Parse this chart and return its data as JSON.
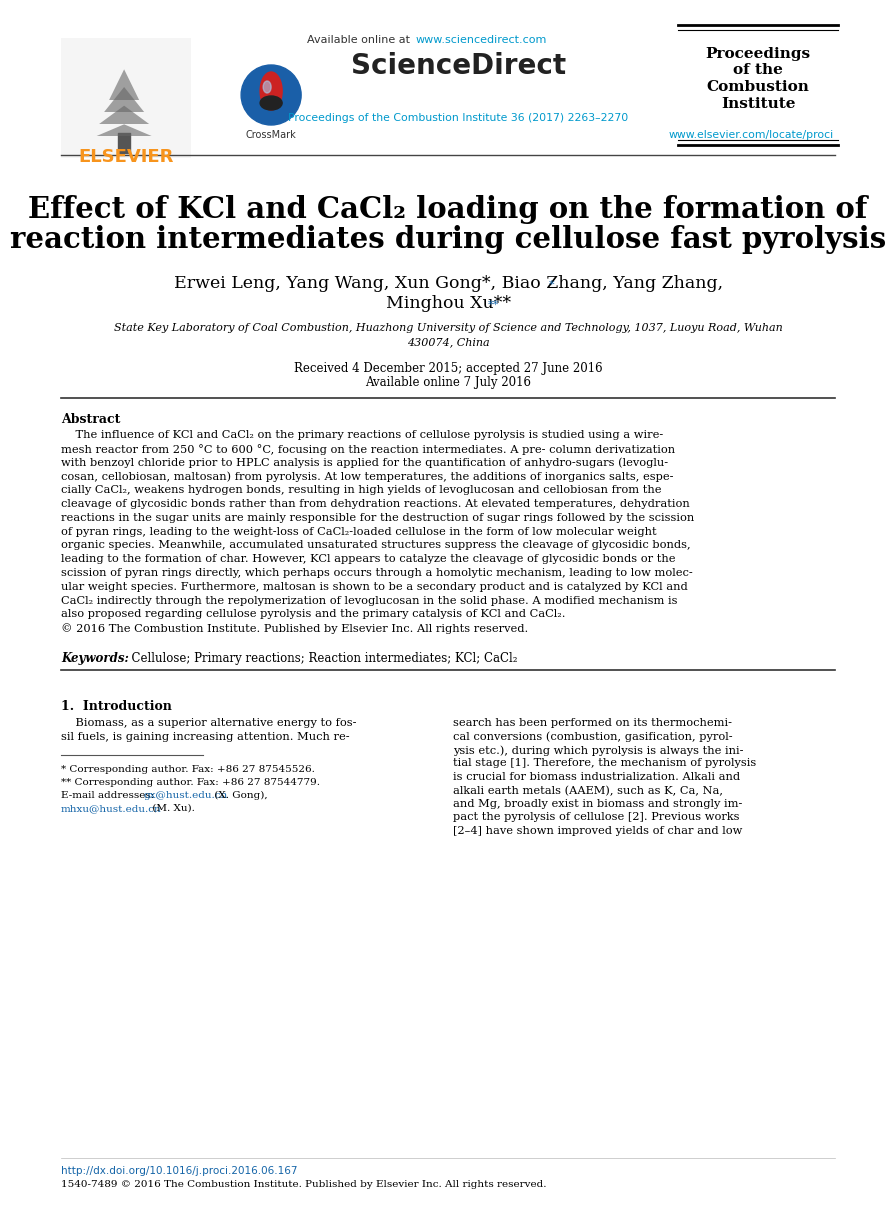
{
  "bg_color": "#ffffff",
  "color_blue": "#1565a8",
  "color_cyan": "#0099cc",
  "color_orange": "#f7941d",
  "color_black": "#000000",
  "header_available": "Available online at ",
  "header_url": "www.sciencedirect.com",
  "header_sciencedirect": "ScienceDirect",
  "header_proc1": "Proceedings",
  "header_proc2": "of the",
  "header_proc3": "Combustion",
  "header_proc4": "Institute",
  "header_journal": "Proceedings of the Combustion Institute 36 (2017) 2263–2270",
  "header_elsevier_url": "www.elsevier.com/locate/proci",
  "header_elsevier": "ELSEVIER",
  "header_crossmark": "CrossMark",
  "title1": "Effect of KCl and CaCl₂ loading on the formation of",
  "title2": "reaction intermediates during cellulose fast pyrolysis",
  "authors1": "Erwei Leng, Yang Wang, Xun Gong",
  "authors_star1": "*",
  "authors1b": ", Biao Zhang, Yang Zhang,",
  "authors2": "Minghou Xu",
  "authors_star2": "**",
  "affil1": "State Key Laboratory of Coal Combustion, Huazhong University of Science and Technology, 1037, Luoyu Road, Wuhan",
  "affil2": "430074, China",
  "received": "Received 4 December 2015; accepted 27 June 2016",
  "available_online": "Available online 7 July 2016",
  "abstract_head": "Abstract",
  "abstract_para": [
    "    The influence of KCl and CaCl₂ on the primary reactions of cellulose pyrolysis is studied using a wire-",
    "mesh reactor from 250 °C to 600 °C, focusing on the reaction intermediates. A pre- column derivatization",
    "with benzoyl chloride prior to HPLC analysis is applied for the quantification of anhydro-sugars (levoglu-",
    "cosan, cellobiosan, maltosan) from pyrolysis. At low temperatures, the additions of inorganics salts, espe-",
    "cially CaCl₂, weakens hydrogen bonds, resulting in high yields of levoglucosan and cellobiosan from the",
    "cleavage of glycosidic bonds rather than from dehydration reactions. At elevated temperatures, dehydration",
    "reactions in the sugar units are mainly responsible for the destruction of sugar rings followed by the scission",
    "of pyran rings, leading to the weight-loss of CaCl₂-loaded cellulose in the form of low molecular weight",
    "organic species. Meanwhile, accumulated unsaturated structures suppress the cleavage of glycosidic bonds,",
    "leading to the formation of char. However, KCl appears to catalyze the cleavage of glycosidic bonds or the",
    "scission of pyran rings directly, which perhaps occurs through a homolytic mechanism, leading to low molec-",
    "ular weight species. Furthermore, maltosan is shown to be a secondary product and is catalyzed by KCl and",
    "CaCl₂ indirectly through the repolymerization of levoglucosan in the solid phase. A modified mechanism is",
    "also proposed regarding cellulose pyrolysis and the primary catalysis of KCl and CaCl₂.",
    "© 2016 The Combustion Institute. Published by Elsevier Inc. All rights reserved."
  ],
  "keywords_label": "Keywords:",
  "keywords_text": "  Cellulose; Primary reactions; Reaction intermediates; KCl; CaCl₂",
  "intro_head": "1.  Introduction",
  "intro_col1": [
    "    Biomass, as a superior alternative energy to fos-",
    "sil fuels, is gaining increasing attention. Much re-"
  ],
  "intro_col2": [
    "search has been performed on its thermochemi-",
    "cal conversions (combustion, gasification, pyrol-",
    "ysis etc.), during which pyrolysis is always the ini-",
    "tial stage [1]. Therefore, the mechanism of pyrolysis",
    "is crucial for biomass industrialization. Alkali and",
    "alkali earth metals (AAEM), such as K, Ca, Na,",
    "and Mg, broadly exist in biomass and strongly im-",
    "pact the pyrolysis of cellulose [2]. Previous works",
    "[2–4] have shown improved yields of char and low"
  ],
  "fn_line": "* Corresponding author. Fax: +86 27 87545526.",
  "fn_line2": "** Corresponding author. Fax: +86 27 87544779.",
  "fn_email_pre": "E-mail addresses: ",
  "fn_email_link1": "gx@hust.edu.cn",
  "fn_email_mid": " (X. Gong),",
  "fn_email_link2": "mhxu@hust.edu.cn",
  "fn_email_end": " (M. Xu).",
  "footer_doi": "http://dx.doi.org/10.1016/j.proci.2016.06.167",
  "footer_issn": "1540-7489 © 2016 The Combustion Institute. Published by Elsevier Inc. All rights reserved."
}
